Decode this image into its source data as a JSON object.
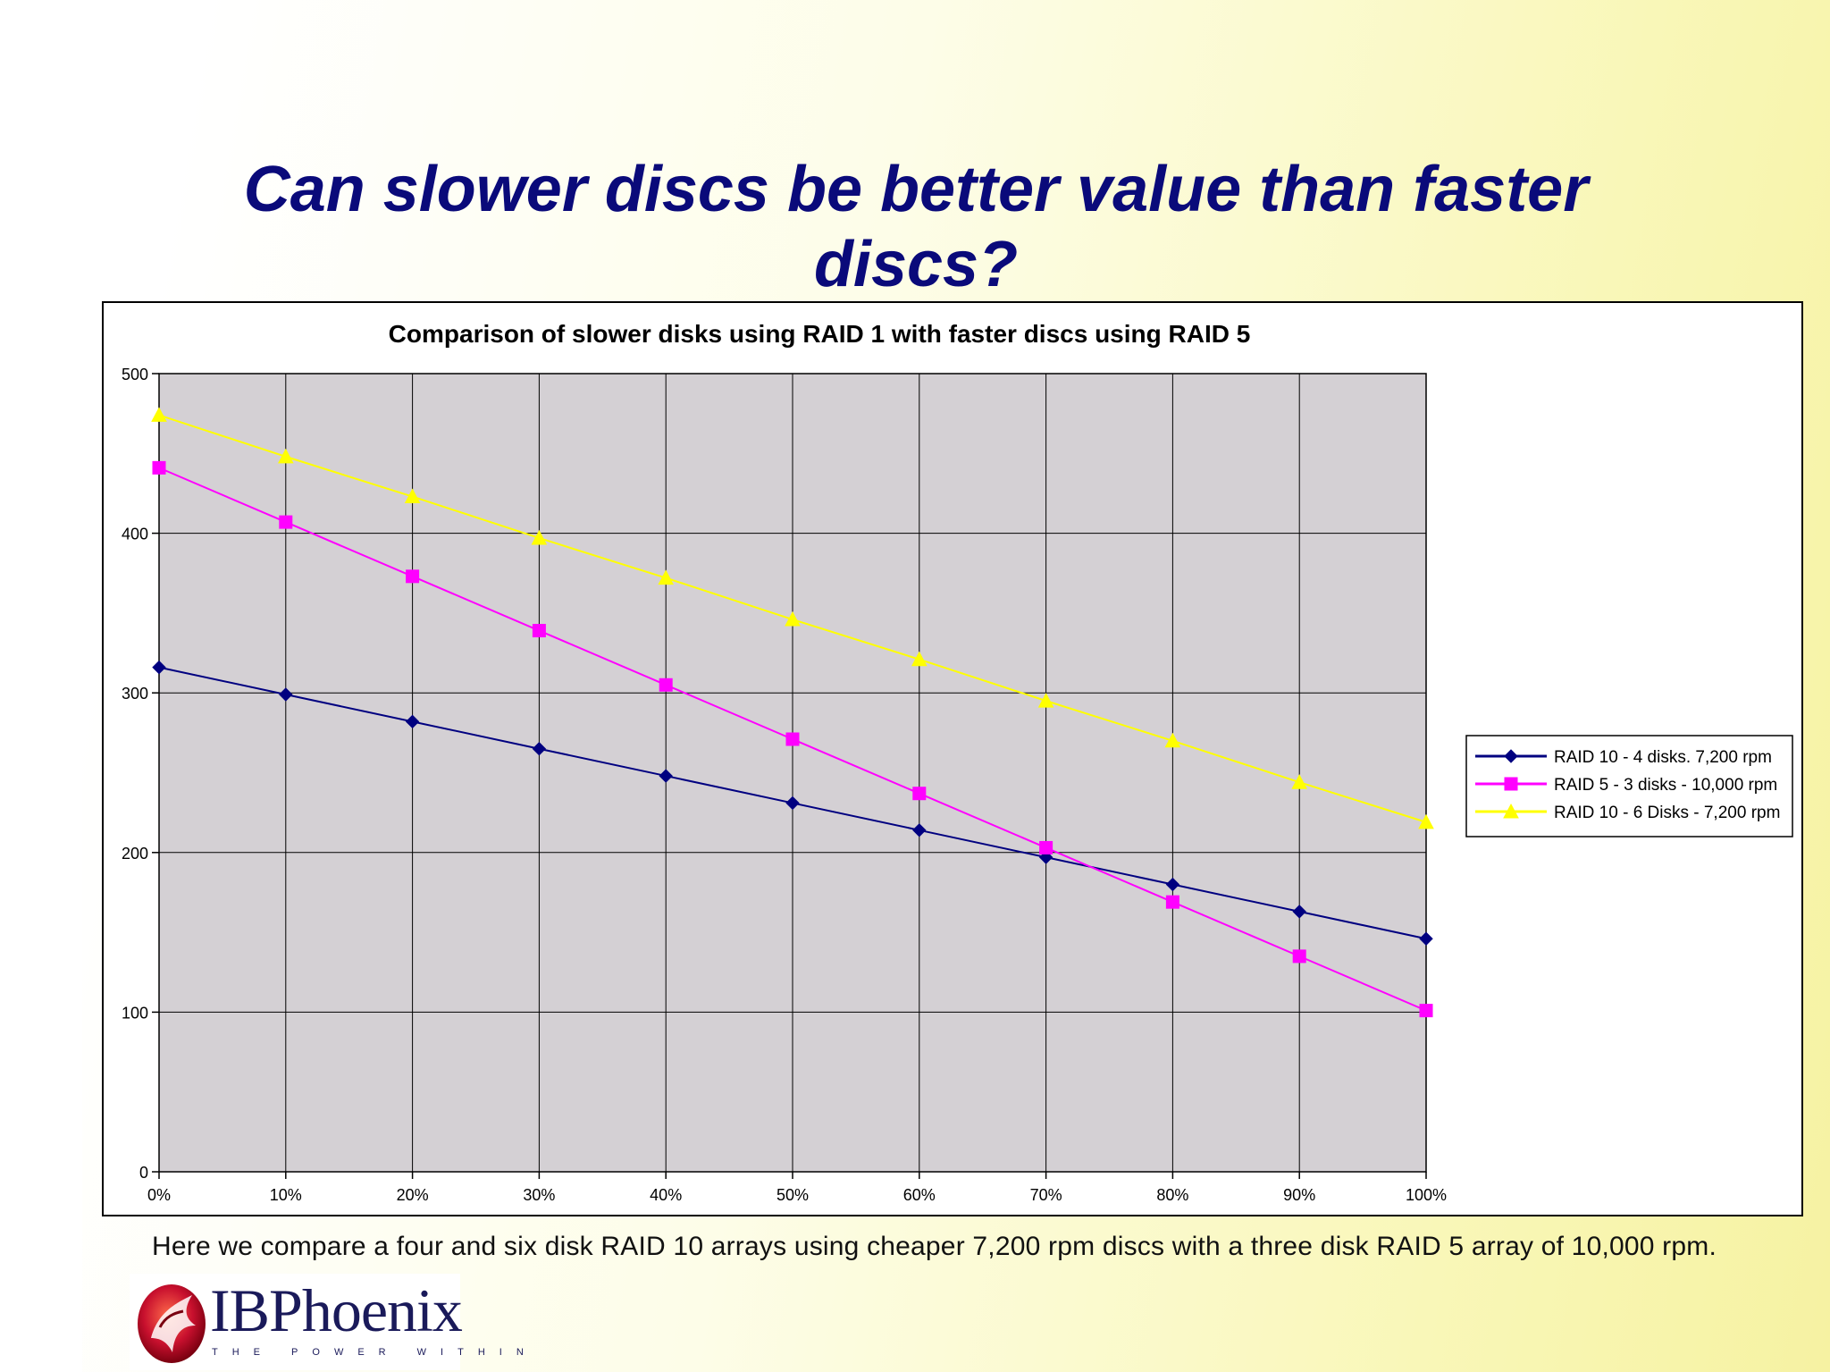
{
  "slide": {
    "title": "Can slower discs be better value than faster discs?",
    "caption": "Here we compare a four and six disk RAID 10 arrays using cheaper 7,200 rpm discs with a three disk RAID 5 array of 10,000 rpm.",
    "logo": {
      "name": "IBPhoenix",
      "tagline": "THE POWER WITHIN"
    }
  },
  "chart_data": {
    "type": "line",
    "title": "Comparison of slower disks using RAID 1 with faster discs using RAID 5",
    "xlabel": "",
    "ylabel": "",
    "categories": [
      "0%",
      "10%",
      "20%",
      "30%",
      "40%",
      "50%",
      "60%",
      "70%",
      "80%",
      "90%",
      "100%"
    ],
    "ylim": [
      0,
      500
    ],
    "yticks": [
      0,
      100,
      200,
      300,
      400,
      500
    ],
    "grid": true,
    "legend_position": "right",
    "series": [
      {
        "name": "RAID 10 - 4 disks. 7,200 rpm",
        "color": "#000080",
        "marker": "diamond",
        "values": [
          316,
          299,
          282,
          265,
          248,
          231,
          214,
          197,
          180,
          163,
          146
        ]
      },
      {
        "name": "RAID 5 - 3 disks - 10,000 rpm",
        "color": "#ff00ff",
        "marker": "square",
        "values": [
          441,
          407,
          373,
          339,
          305,
          271,
          237,
          203,
          169,
          135,
          101
        ]
      },
      {
        "name": "RAID 10 - 6 Disks - 7,200 rpm",
        "color": "#ffff00",
        "marker": "triangle",
        "values": [
          474,
          448,
          423,
          397,
          372,
          346,
          321,
          295,
          270,
          244,
          219
        ]
      }
    ],
    "colors": {
      "plot_background": "#d4d0d4",
      "gridline": "#000000"
    }
  }
}
